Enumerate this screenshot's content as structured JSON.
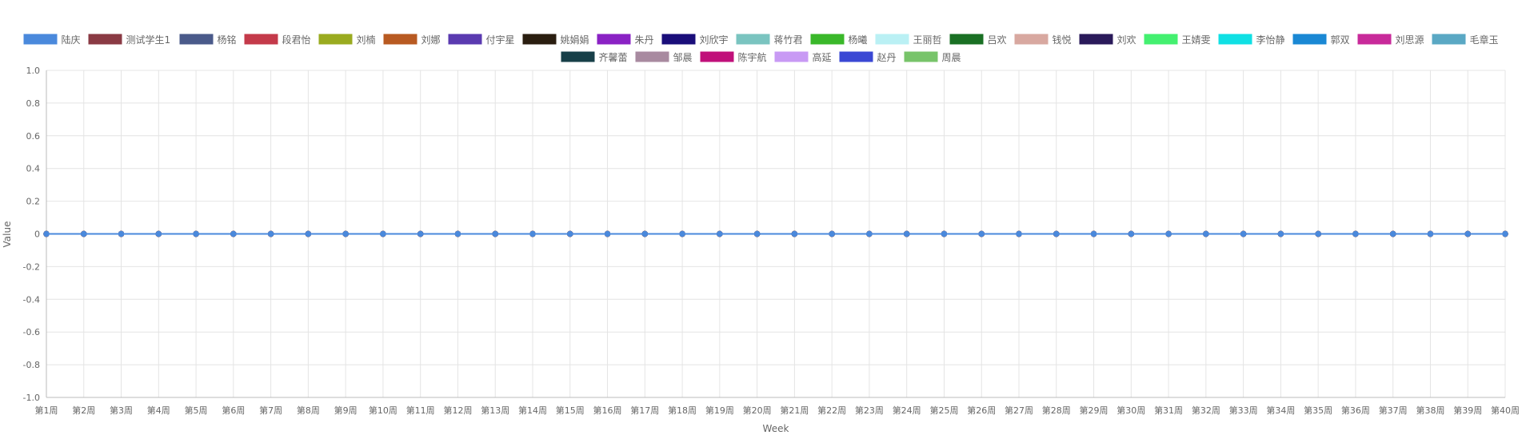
{
  "chart_data": {
    "type": "line",
    "xlabel": "Week",
    "ylabel": "Value",
    "ylim": [
      -1.0,
      1.0
    ],
    "y_ticks": [
      "1.0",
      "0.8",
      "0.6",
      "0.4",
      "0.2",
      "0",
      "-0.2",
      "-0.4",
      "-0.6",
      "-0.8",
      "-1.0"
    ],
    "grid": true,
    "legend_position": "top",
    "categories": [
      "第1周",
      "第2周",
      "第3周",
      "第4周",
      "第5周",
      "第6周",
      "第7周",
      "第8周",
      "第9周",
      "第10周",
      "第11周",
      "第12周",
      "第13周",
      "第14周",
      "第15周",
      "第16周",
      "第17周",
      "第18周",
      "第19周",
      "第20周",
      "第21周",
      "第22周",
      "第23周",
      "第24周",
      "第25周",
      "第26周",
      "第27周",
      "第28周",
      "第29周",
      "第30周",
      "第31周",
      "第32周",
      "第33周",
      "第34周",
      "第35周",
      "第36周",
      "第37周",
      "第38周",
      "第39周",
      "第40周"
    ],
    "series": [
      {
        "name": "陆庆",
        "color": "#4a89dc",
        "values": [
          0,
          0,
          0,
          0,
          0,
          0,
          0,
          0,
          0,
          0,
          0,
          0,
          0,
          0,
          0,
          0,
          0,
          0,
          0,
          0,
          0,
          0,
          0,
          0,
          0,
          0,
          0,
          0,
          0,
          0,
          0,
          0,
          0,
          0,
          0,
          0,
          0,
          0,
          0,
          0
        ]
      },
      {
        "name": "测试学生1",
        "color": "#8a3a44",
        "values": [
          0,
          0,
          0,
          0,
          0,
          0,
          0,
          0,
          0,
          0,
          0,
          0,
          0,
          0,
          0,
          0,
          0,
          0,
          0,
          0,
          0,
          0,
          0,
          0,
          0,
          0,
          0,
          0,
          0,
          0,
          0,
          0,
          0,
          0,
          0,
          0,
          0,
          0,
          0,
          0
        ]
      },
      {
        "name": "杨铭",
        "color": "#4a5a8a",
        "values": [
          0,
          0,
          0,
          0,
          0,
          0,
          0,
          0,
          0,
          0,
          0,
          0,
          0,
          0,
          0,
          0,
          0,
          0,
          0,
          0,
          0,
          0,
          0,
          0,
          0,
          0,
          0,
          0,
          0,
          0,
          0,
          0,
          0,
          0,
          0,
          0,
          0,
          0,
          0,
          0
        ]
      },
      {
        "name": "段君怡",
        "color": "#c43a4a",
        "values": [
          0,
          0,
          0,
          0,
          0,
          0,
          0,
          0,
          0,
          0,
          0,
          0,
          0,
          0,
          0,
          0,
          0,
          0,
          0,
          0,
          0,
          0,
          0,
          0,
          0,
          0,
          0,
          0,
          0,
          0,
          0,
          0,
          0,
          0,
          0,
          0,
          0,
          0,
          0,
          0
        ]
      },
      {
        "name": "刘楠",
        "color": "#9aab20",
        "values": [
          0,
          0,
          0,
          0,
          0,
          0,
          0,
          0,
          0,
          0,
          0,
          0,
          0,
          0,
          0,
          0,
          0,
          0,
          0,
          0,
          0,
          0,
          0,
          0,
          0,
          0,
          0,
          0,
          0,
          0,
          0,
          0,
          0,
          0,
          0,
          0,
          0,
          0,
          0,
          0
        ]
      },
      {
        "name": "刘娜",
        "color": "#b85a22",
        "values": [
          0,
          0,
          0,
          0,
          0,
          0,
          0,
          0,
          0,
          0,
          0,
          0,
          0,
          0,
          0,
          0,
          0,
          0,
          0,
          0,
          0,
          0,
          0,
          0,
          0,
          0,
          0,
          0,
          0,
          0,
          0,
          0,
          0,
          0,
          0,
          0,
          0,
          0,
          0,
          0
        ]
      },
      {
        "name": "付宇星",
        "color": "#5a3ab0",
        "values": [
          0,
          0,
          0,
          0,
          0,
          0,
          0,
          0,
          0,
          0,
          0,
          0,
          0,
          0,
          0,
          0,
          0,
          0,
          0,
          0,
          0,
          0,
          0,
          0,
          0,
          0,
          0,
          0,
          0,
          0,
          0,
          0,
          0,
          0,
          0,
          0,
          0,
          0,
          0,
          0
        ]
      },
      {
        "name": "姚娟娟",
        "color": "#2a1e10",
        "values": [
          0,
          0,
          0,
          0,
          0,
          0,
          0,
          0,
          0,
          0,
          0,
          0,
          0,
          0,
          0,
          0,
          0,
          0,
          0,
          0,
          0,
          0,
          0,
          0,
          0,
          0,
          0,
          0,
          0,
          0,
          0,
          0,
          0,
          0,
          0,
          0,
          0,
          0,
          0,
          0
        ]
      },
      {
        "name": "朱丹",
        "color": "#8a22c4",
        "values": [
          0,
          0,
          0,
          0,
          0,
          0,
          0,
          0,
          0,
          0,
          0,
          0,
          0,
          0,
          0,
          0,
          0,
          0,
          0,
          0,
          0,
          0,
          0,
          0,
          0,
          0,
          0,
          0,
          0,
          0,
          0,
          0,
          0,
          0,
          0,
          0,
          0,
          0,
          0,
          0
        ]
      },
      {
        "name": "刘欣宇",
        "color": "#1a0e7a",
        "values": [
          0,
          0,
          0,
          0,
          0,
          0,
          0,
          0,
          0,
          0,
          0,
          0,
          0,
          0,
          0,
          0,
          0,
          0,
          0,
          0,
          0,
          0,
          0,
          0,
          0,
          0,
          0,
          0,
          0,
          0,
          0,
          0,
          0,
          0,
          0,
          0,
          0,
          0,
          0,
          0
        ]
      },
      {
        "name": "蒋竹君",
        "color": "#7ac4c0",
        "values": [
          0,
          0,
          0,
          0,
          0,
          0,
          0,
          0,
          0,
          0,
          0,
          0,
          0,
          0,
          0,
          0,
          0,
          0,
          0,
          0,
          0,
          0,
          0,
          0,
          0,
          0,
          0,
          0,
          0,
          0,
          0,
          0,
          0,
          0,
          0,
          0,
          0,
          0,
          0,
          0
        ]
      },
      {
        "name": "杨曦",
        "color": "#3ab82a",
        "values": [
          0,
          0,
          0,
          0,
          0,
          0,
          0,
          0,
          0,
          0,
          0,
          0,
          0,
          0,
          0,
          0,
          0,
          0,
          0,
          0,
          0,
          0,
          0,
          0,
          0,
          0,
          0,
          0,
          0,
          0,
          0,
          0,
          0,
          0,
          0,
          0,
          0,
          0,
          0,
          0
        ]
      },
      {
        "name": "王丽哲",
        "color": "#baf0f4",
        "values": [
          0,
          0,
          0,
          0,
          0,
          0,
          0,
          0,
          0,
          0,
          0,
          0,
          0,
          0,
          0,
          0,
          0,
          0,
          0,
          0,
          0,
          0,
          0,
          0,
          0,
          0,
          0,
          0,
          0,
          0,
          0,
          0,
          0,
          0,
          0,
          0,
          0,
          0,
          0,
          0
        ]
      },
      {
        "name": "吕欢",
        "color": "#1a7024",
        "values": [
          0,
          0,
          0,
          0,
          0,
          0,
          0,
          0,
          0,
          0,
          0,
          0,
          0,
          0,
          0,
          0,
          0,
          0,
          0,
          0,
          0,
          0,
          0,
          0,
          0,
          0,
          0,
          0,
          0,
          0,
          0,
          0,
          0,
          0,
          0,
          0,
          0,
          0,
          0,
          0
        ]
      },
      {
        "name": "钱悦",
        "color": "#d8a8a0",
        "values": [
          0,
          0,
          0,
          0,
          0,
          0,
          0,
          0,
          0,
          0,
          0,
          0,
          0,
          0,
          0,
          0,
          0,
          0,
          0,
          0,
          0,
          0,
          0,
          0,
          0,
          0,
          0,
          0,
          0,
          0,
          0,
          0,
          0,
          0,
          0,
          0,
          0,
          0,
          0,
          0
        ]
      },
      {
        "name": "刘欢",
        "color": "#2a1a5a",
        "values": [
          0,
          0,
          0,
          0,
          0,
          0,
          0,
          0,
          0,
          0,
          0,
          0,
          0,
          0,
          0,
          0,
          0,
          0,
          0,
          0,
          0,
          0,
          0,
          0,
          0,
          0,
          0,
          0,
          0,
          0,
          0,
          0,
          0,
          0,
          0,
          0,
          0,
          0,
          0,
          0
        ]
      },
      {
        "name": "王婧雯",
        "color": "#44f070",
        "values": [
          0,
          0,
          0,
          0,
          0,
          0,
          0,
          0,
          0,
          0,
          0,
          0,
          0,
          0,
          0,
          0,
          0,
          0,
          0,
          0,
          0,
          0,
          0,
          0,
          0,
          0,
          0,
          0,
          0,
          0,
          0,
          0,
          0,
          0,
          0,
          0,
          0,
          0,
          0,
          0
        ]
      },
      {
        "name": "李怡静",
        "color": "#10e0e4",
        "values": [
          0,
          0,
          0,
          0,
          0,
          0,
          0,
          0,
          0,
          0,
          0,
          0,
          0,
          0,
          0,
          0,
          0,
          0,
          0,
          0,
          0,
          0,
          0,
          0,
          0,
          0,
          0,
          0,
          0,
          0,
          0,
          0,
          0,
          0,
          0,
          0,
          0,
          0,
          0,
          0
        ]
      },
      {
        "name": "郭双",
        "color": "#1a88d4",
        "values": [
          0,
          0,
          0,
          0,
          0,
          0,
          0,
          0,
          0,
          0,
          0,
          0,
          0,
          0,
          0,
          0,
          0,
          0,
          0,
          0,
          0,
          0,
          0,
          0,
          0,
          0,
          0,
          0,
          0,
          0,
          0,
          0,
          0,
          0,
          0,
          0,
          0,
          0,
          0,
          0
        ]
      },
      {
        "name": "刘思源",
        "color": "#c82a9a",
        "values": [
          0,
          0,
          0,
          0,
          0,
          0,
          0,
          0,
          0,
          0,
          0,
          0,
          0,
          0,
          0,
          0,
          0,
          0,
          0,
          0,
          0,
          0,
          0,
          0,
          0,
          0,
          0,
          0,
          0,
          0,
          0,
          0,
          0,
          0,
          0,
          0,
          0,
          0,
          0,
          0
        ]
      },
      {
        "name": "毛章玉",
        "color": "#5aa8c4",
        "values": [
          0,
          0,
          0,
          0,
          0,
          0,
          0,
          0,
          0,
          0,
          0,
          0,
          0,
          0,
          0,
          0,
          0,
          0,
          0,
          0,
          0,
          0,
          0,
          0,
          0,
          0,
          0,
          0,
          0,
          0,
          0,
          0,
          0,
          0,
          0,
          0,
          0,
          0,
          0,
          0
        ]
      },
      {
        "name": "齐馨蕾",
        "color": "#173f48",
        "values": [
          0,
          0,
          0,
          0,
          0,
          0,
          0,
          0,
          0,
          0,
          0,
          0,
          0,
          0,
          0,
          0,
          0,
          0,
          0,
          0,
          0,
          0,
          0,
          0,
          0,
          0,
          0,
          0,
          0,
          0,
          0,
          0,
          0,
          0,
          0,
          0,
          0,
          0,
          0,
          0
        ]
      },
      {
        "name": "邹晨",
        "color": "#a88aa0",
        "values": [
          0,
          0,
          0,
          0,
          0,
          0,
          0,
          0,
          0,
          0,
          0,
          0,
          0,
          0,
          0,
          0,
          0,
          0,
          0,
          0,
          0,
          0,
          0,
          0,
          0,
          0,
          0,
          0,
          0,
          0,
          0,
          0,
          0,
          0,
          0,
          0,
          0,
          0,
          0,
          0
        ]
      },
      {
        "name": "陈宇航",
        "color": "#c0107a",
        "values": [
          0,
          0,
          0,
          0,
          0,
          0,
          0,
          0,
          0,
          0,
          0,
          0,
          0,
          0,
          0,
          0,
          0,
          0,
          0,
          0,
          0,
          0,
          0,
          0,
          0,
          0,
          0,
          0,
          0,
          0,
          0,
          0,
          0,
          0,
          0,
          0,
          0,
          0,
          0,
          0
        ]
      },
      {
        "name": "高延",
        "color": "#c89af4",
        "values": [
          0,
          0,
          0,
          0,
          0,
          0,
          0,
          0,
          0,
          0,
          0,
          0,
          0,
          0,
          0,
          0,
          0,
          0,
          0,
          0,
          0,
          0,
          0,
          0,
          0,
          0,
          0,
          0,
          0,
          0,
          0,
          0,
          0,
          0,
          0,
          0,
          0,
          0,
          0,
          0
        ]
      },
      {
        "name": "赵丹",
        "color": "#3a48d4",
        "values": [
          0,
          0,
          0,
          0,
          0,
          0,
          0,
          0,
          0,
          0,
          0,
          0,
          0,
          0,
          0,
          0,
          0,
          0,
          0,
          0,
          0,
          0,
          0,
          0,
          0,
          0,
          0,
          0,
          0,
          0,
          0,
          0,
          0,
          0,
          0,
          0,
          0,
          0,
          0,
          0
        ]
      },
      {
        "name": "周晨",
        "color": "#78c46a",
        "values": [
          0,
          0,
          0,
          0,
          0,
          0,
          0,
          0,
          0,
          0,
          0,
          0,
          0,
          0,
          0,
          0,
          0,
          0,
          0,
          0,
          0,
          0,
          0,
          0,
          0,
          0,
          0,
          0,
          0,
          0,
          0,
          0,
          0,
          0,
          0,
          0,
          0,
          0,
          0,
          0
        ]
      }
    ]
  }
}
